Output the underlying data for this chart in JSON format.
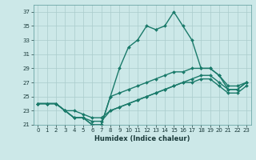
{
  "xlabel": "Humidex (Indice chaleur)",
  "bg_color": "#cce8e8",
  "grid_color": "#aacccc",
  "line_color": "#1a7a6a",
  "xlim": [
    -0.5,
    23.5
  ],
  "ylim": [
    21,
    38
  ],
  "yticks": [
    21,
    23,
    25,
    27,
    29,
    31,
    33,
    35,
    37
  ],
  "xticks": [
    0,
    1,
    2,
    3,
    4,
    5,
    6,
    7,
    8,
    9,
    10,
    11,
    12,
    13,
    14,
    15,
    16,
    17,
    18,
    19,
    20,
    21,
    22,
    23
  ],
  "lines": [
    {
      "x": [
        0,
        1,
        2,
        3,
        4,
        5,
        6,
        7,
        8,
        9,
        10,
        11,
        12,
        13,
        14,
        15,
        16,
        17,
        18,
        19,
        20,
        21,
        22,
        23
      ],
      "y": [
        24,
        24,
        24,
        23,
        22,
        22,
        21,
        21,
        25,
        29,
        32,
        33,
        35,
        34.5,
        35,
        37,
        35,
        33,
        29,
        29,
        28,
        26,
        26,
        27
      ]
    },
    {
      "x": [
        0,
        1,
        2,
        3,
        4,
        5,
        6,
        7,
        8,
        9,
        10,
        11,
        12,
        13,
        14,
        15,
        16,
        17,
        18,
        19,
        20,
        21,
        22,
        23
      ],
      "y": [
        24,
        24,
        24,
        23,
        22,
        22,
        21,
        21,
        25,
        25.5,
        26,
        26.5,
        27,
        27.5,
        28,
        28.5,
        28.5,
        29,
        29,
        29,
        28,
        26.5,
        26.5,
        27
      ]
    },
    {
      "x": [
        0,
        1,
        2,
        3,
        4,
        5,
        6,
        7,
        8,
        9,
        10,
        11,
        12,
        13,
        14,
        15,
        16,
        17,
        18,
        19,
        20,
        21,
        22,
        23
      ],
      "y": [
        24,
        24,
        24,
        23,
        23,
        22.5,
        22,
        22,
        23,
        23.5,
        24,
        24.5,
        25,
        25.5,
        26,
        26.5,
        27,
        27.5,
        28,
        28,
        27,
        26,
        26,
        27
      ]
    },
    {
      "x": [
        0,
        1,
        2,
        3,
        4,
        5,
        6,
        7,
        8,
        9,
        10,
        11,
        12,
        13,
        14,
        15,
        16,
        17,
        18,
        19,
        20,
        21,
        22,
        23
      ],
      "y": [
        24,
        24,
        24,
        23,
        22,
        22,
        21.5,
        21.5,
        23,
        23.5,
        24,
        24.5,
        25,
        25.5,
        26,
        26.5,
        27,
        27,
        27.5,
        27.5,
        26.5,
        25.5,
        25.5,
        26.5
      ]
    }
  ]
}
